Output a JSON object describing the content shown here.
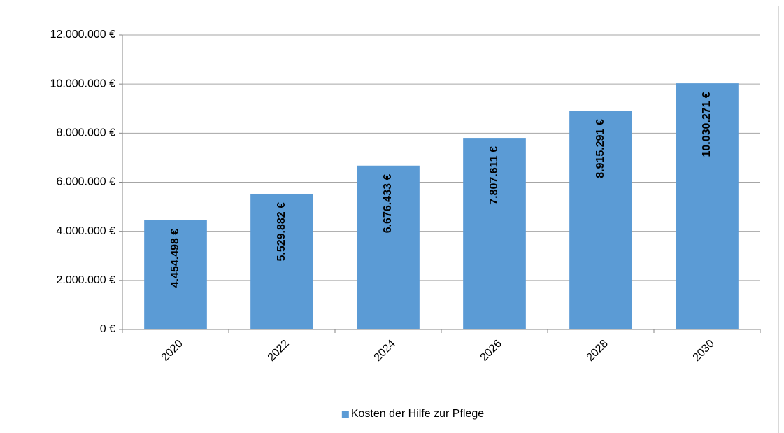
{
  "chart_data": {
    "type": "bar",
    "categories": [
      "2020",
      "2022",
      "2024",
      "2026",
      "2028",
      "2030"
    ],
    "series": [
      {
        "name": "Kosten der Hilfe zur Pflege",
        "color": "#5b9bd5",
        "values": [
          4454498,
          5529882,
          6676433,
          7807611,
          8915291,
          10030271
        ],
        "value_labels": [
          "4.454.498 €",
          "5.529.882 €",
          "6.676.433 €",
          "7.807.611 €",
          "8.915.291 €",
          "10.030.271 €"
        ]
      }
    ],
    "ylim": [
      0,
      12000000
    ],
    "yticks": [
      {
        "value": 0,
        "label": "0 €"
      },
      {
        "value": 2000000,
        "label": "2.000.000 €"
      },
      {
        "value": 4000000,
        "label": "4.000.000 €"
      },
      {
        "value": 6000000,
        "label": "6.000.000 €"
      },
      {
        "value": 8000000,
        "label": "8.000.000 €"
      },
      {
        "value": 10000000,
        "label": "10.000.000 €"
      },
      {
        "value": 12000000,
        "label": "12.000.000 €"
      }
    ],
    "grid": true,
    "legend": "bottom"
  }
}
